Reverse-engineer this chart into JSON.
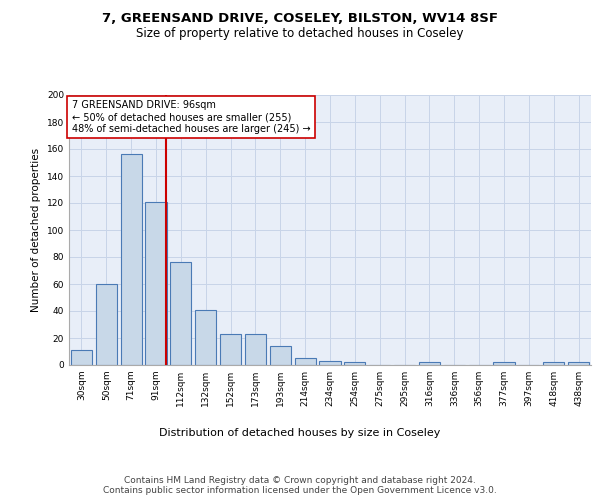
{
  "title1": "7, GREENSAND DRIVE, COSELEY, BILSTON, WV14 8SF",
  "title2": "Size of property relative to detached houses in Coseley",
  "xlabel": "Distribution of detached houses by size in Coseley",
  "ylabel": "Number of detached properties",
  "categories": [
    "30sqm",
    "50sqm",
    "71sqm",
    "91sqm",
    "112sqm",
    "132sqm",
    "152sqm",
    "173sqm",
    "193sqm",
    "214sqm",
    "234sqm",
    "254sqm",
    "275sqm",
    "295sqm",
    "316sqm",
    "336sqm",
    "356sqm",
    "377sqm",
    "397sqm",
    "418sqm",
    "438sqm"
  ],
  "values": [
    11,
    60,
    156,
    121,
    76,
    41,
    23,
    23,
    14,
    5,
    3,
    2,
    0,
    0,
    2,
    0,
    0,
    2,
    0,
    2,
    2
  ],
  "bar_color": "#c8d8e8",
  "bar_edge_color": "#4a7ab5",
  "bar_edge_width": 0.8,
  "vline_x_index": 3,
  "vline_color": "#cc0000",
  "annotation_line1": "7 GREENSAND DRIVE: 96sqm",
  "annotation_line2": "← 50% of detached houses are smaller (255)",
  "annotation_line3": "48% of semi-detached houses are larger (245) →",
  "annotation_box_color": "#ffffff",
  "annotation_box_edge_color": "#cc0000",
  "ylim": [
    0,
    200
  ],
  "yticks": [
    0,
    20,
    40,
    60,
    80,
    100,
    120,
    140,
    160,
    180,
    200
  ],
  "grid_color": "#c8d4e8",
  "bg_color": "#e8eef8",
  "footer_text": "Contains HM Land Registry data © Crown copyright and database right 2024.\nContains public sector information licensed under the Open Government Licence v3.0.",
  "title1_fontsize": 9.5,
  "title2_fontsize": 8.5,
  "xlabel_fontsize": 8,
  "ylabel_fontsize": 7.5,
  "tick_fontsize": 6.5,
  "annotation_fontsize": 7,
  "footer_fontsize": 6.5
}
